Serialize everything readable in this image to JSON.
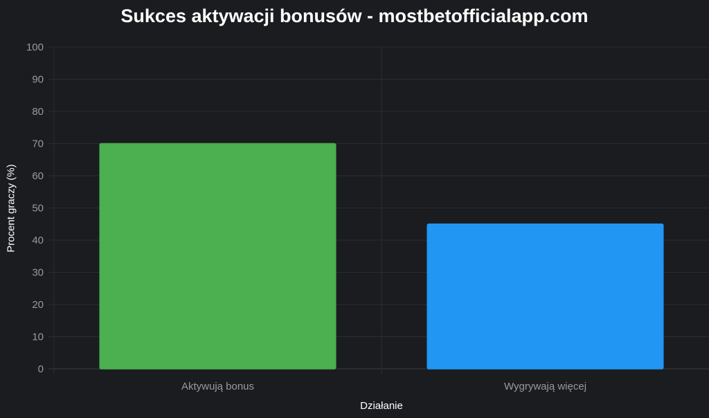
{
  "chart_data": {
    "type": "bar",
    "title": "Sukces aktywacji bonusów - mostbetofficialapp.com",
    "xlabel": "Działanie",
    "ylabel": "Procent graczy (%)",
    "categories": [
      "Aktywują bonus",
      "Wygrywają więcej"
    ],
    "values": [
      70,
      45
    ],
    "colors": [
      "#4caf50",
      "#2196f3"
    ],
    "ylim": [
      0,
      100
    ],
    "yticks": [
      "0",
      "10",
      "20",
      "30",
      "40",
      "50",
      "60",
      "70",
      "80",
      "90",
      "100"
    ],
    "grid": true,
    "legend": "none"
  }
}
